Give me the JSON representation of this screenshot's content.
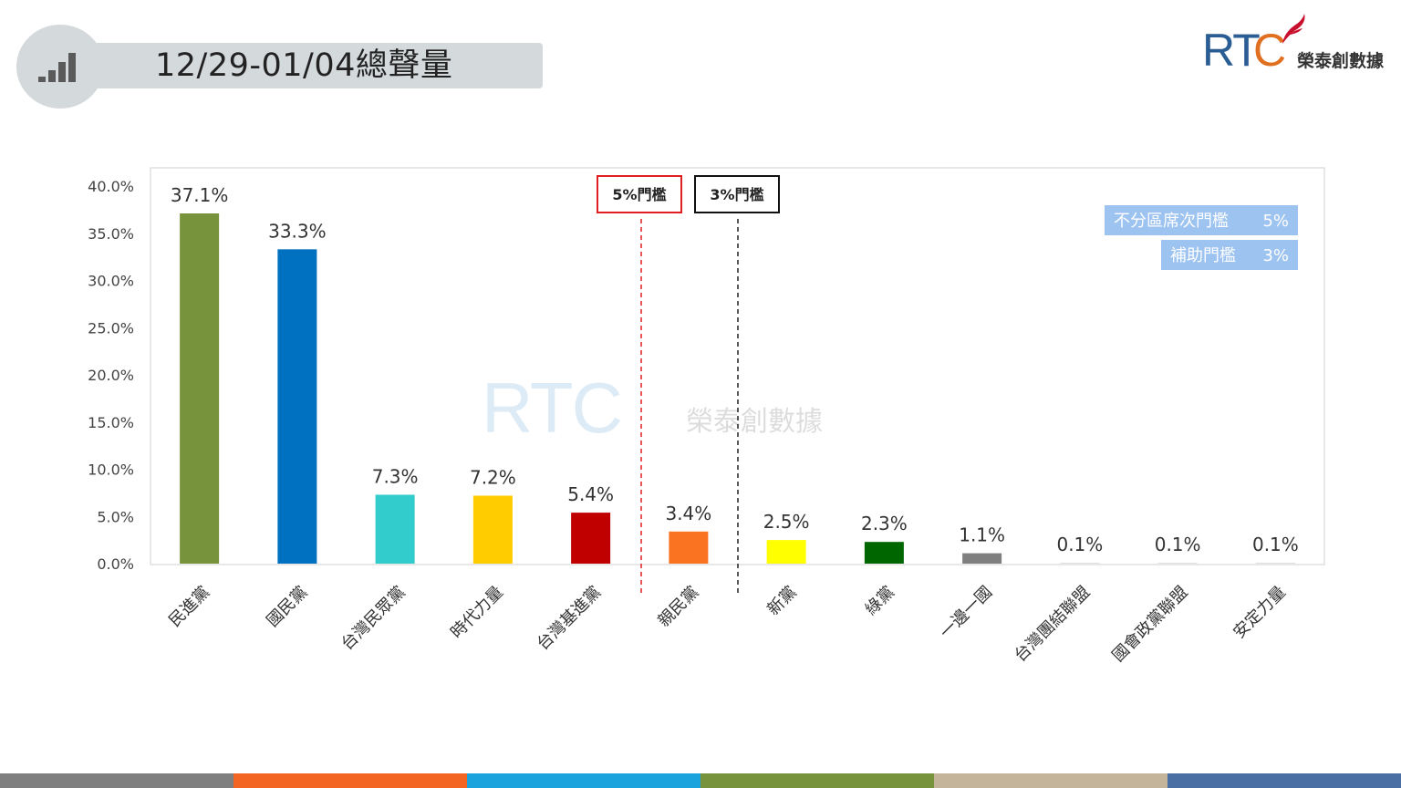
{
  "header": {
    "title": "12/29-01/04總聲量"
  },
  "logo": {
    "letters": "RT",
    "c_letter": "C",
    "name": "榮泰創數據"
  },
  "watermark": {
    "letters": "RTC",
    "name": "榮泰創數據"
  },
  "legend_boxes": [
    {
      "label": "不分區席次門檻",
      "value": "5%"
    },
    {
      "label": "補助門檻",
      "value": "3%"
    }
  ],
  "threshold_markers": [
    {
      "label": "5%門檻",
      "color": "#e02020"
    },
    {
      "label": "3%門檻",
      "color": "#111111"
    }
  ],
  "bottom_stripe_colors": [
    "#7f7f7f",
    "#f26522",
    "#1aa3dc",
    "#77933c",
    "#c4b59a",
    "#4a6fa5"
  ],
  "chart_data": {
    "type": "bar",
    "title": "",
    "xlabel": "",
    "ylabel": "",
    "ylim": [
      0,
      40
    ],
    "yticks": [
      "0.0%",
      "5.0%",
      "10.0%",
      "15.0%",
      "20.0%",
      "25.0%",
      "30.0%",
      "35.0%",
      "40.0%"
    ],
    "grid": false,
    "categories": [
      "民進黨",
      "國民黨",
      "台灣民眾黨",
      "時代力量",
      "台灣基進黨",
      "親民黨",
      "新黨",
      "綠黨",
      "一邊一國",
      "台灣團結聯盟",
      "國會政黨聯盟",
      "安定力量"
    ],
    "values": [
      37.1,
      33.3,
      7.3,
      7.2,
      5.4,
      3.4,
      2.5,
      2.3,
      1.1,
      0.1,
      0.1,
      0.1
    ],
    "labels": [
      "37.1%",
      "33.3%",
      "7.3%",
      "7.2%",
      "5.4%",
      "3.4%",
      "2.5%",
      "2.3%",
      "1.1%",
      "0.1%",
      "0.1%",
      "0.1%"
    ],
    "colors": [
      "#77933c",
      "#0070c0",
      "#33cccc",
      "#ffcc00",
      "#c00000",
      "#f97320",
      "#ffff00",
      "#006600",
      "#7f7f7f",
      "#e0e0e0",
      "#e0e0e0",
      "#e0e0e0"
    ]
  }
}
